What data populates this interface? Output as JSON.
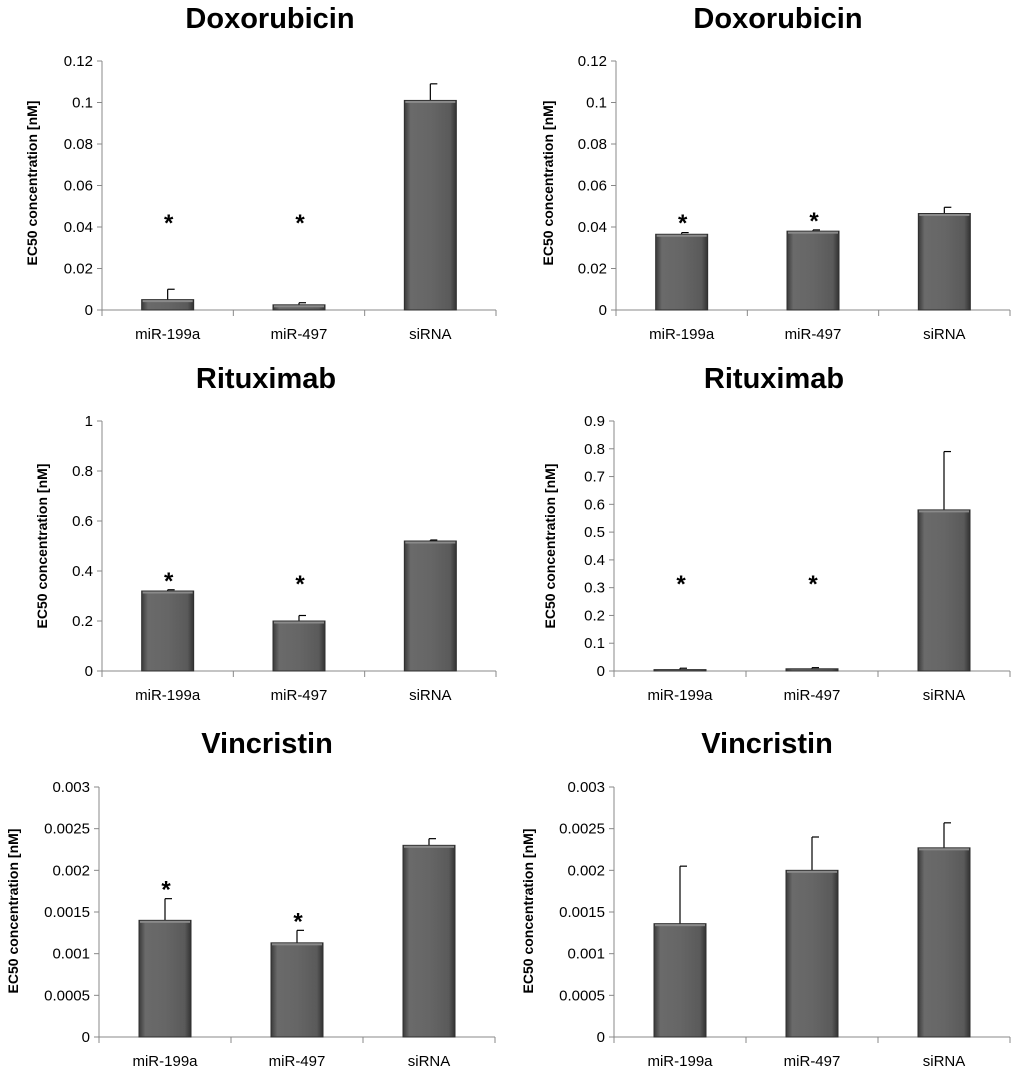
{
  "chart_data": [
    {
      "type": "bar",
      "title": "Doxorubicin",
      "ylabel": "EC50 concentration [nM]",
      "categories": [
        "miR-199a",
        "miR-497",
        "siRNA"
      ],
      "values": [
        0.005,
        0.0025,
        0.101
      ],
      "errors": [
        0.005,
        0.001,
        0.008
      ],
      "significant": [
        true,
        true,
        false
      ],
      "ylim": [
        0,
        0.12
      ],
      "yticks": [
        "0",
        "0.02",
        "0.04",
        "0.06",
        "0.08",
        "0.1",
        "0.12"
      ],
      "annotation": "*",
      "grid": false,
      "color": "#616161"
    },
    {
      "type": "bar",
      "title": "Doxorubicin",
      "ylabel": "EC50 concentration [nM]",
      "categories": [
        "miR-199a",
        "miR-497",
        "siRNA"
      ],
      "values": [
        0.0365,
        0.038,
        0.0465
      ],
      "errors": [
        0.0008,
        0.0006,
        0.003
      ],
      "significant": [
        true,
        true,
        false
      ],
      "ylim": [
        0,
        0.12
      ],
      "yticks": [
        "0",
        "0.02",
        "0.04",
        "0.06",
        "0.08",
        "0.1",
        "0.12"
      ],
      "annotation": "*",
      "grid": false,
      "color": "#616161"
    },
    {
      "type": "bar",
      "title": "Rituximab",
      "ylabel": "EC50 concentration [nM]",
      "categories": [
        "miR-199a",
        "miR-497",
        "siRNA"
      ],
      "values": [
        0.32,
        0.2,
        0.52
      ],
      "errors": [
        0.005,
        0.022,
        0.004
      ],
      "significant": [
        true,
        true,
        false
      ],
      "ylim": [
        0,
        1
      ],
      "yticks": [
        "0",
        "0.2",
        "0.4",
        "0.6",
        "0.8",
        "1"
      ],
      "annotation": "*",
      "grid": false,
      "color": "#616161"
    },
    {
      "type": "bar",
      "title": "Rituximab",
      "ylabel": "EC50 concentration [nM]",
      "categories": [
        "miR-199a",
        "miR-497",
        "siRNA"
      ],
      "values": [
        0.005,
        0.008,
        0.58
      ],
      "errors": [
        0.005,
        0.004,
        0.21
      ],
      "significant": [
        true,
        true,
        false
      ],
      "ylim": [
        0,
        0.9
      ],
      "yticks": [
        "0",
        "0.1",
        "0.2",
        "0.3",
        "0.4",
        "0.5",
        "0.6",
        "0.7",
        "0.8",
        "0.9"
      ],
      "annotation": "*",
      "grid": false,
      "color": "#616161"
    },
    {
      "type": "bar",
      "title": "Vincristin",
      "ylabel": "EC50 concentration [nM]",
      "categories": [
        "miR-199a",
        "miR-497",
        "siRNA"
      ],
      "values": [
        0.0014,
        0.00113,
        0.0023
      ],
      "errors": [
        0.00026,
        0.00015,
        8e-05
      ],
      "significant": [
        true,
        true,
        false
      ],
      "ylim": [
        0,
        0.003
      ],
      "yticks": [
        "0",
        "0.0005",
        "0.001",
        "0.0015",
        "0.002",
        "0.0025",
        "0.003"
      ],
      "annotation": "*",
      "grid": false,
      "color": "#616161"
    },
    {
      "type": "bar",
      "title": "Vincristin",
      "ylabel": "EC50 concentration [nM]",
      "categories": [
        "miR-199a",
        "miR-497",
        "siRNA"
      ],
      "values": [
        0.00136,
        0.002,
        0.00227
      ],
      "errors": [
        0.00069,
        0.0004,
        0.0003
      ],
      "significant": [
        false,
        false,
        false
      ],
      "ylim": [
        0,
        0.003
      ],
      "yticks": [
        "0",
        "0.0005",
        "0.001",
        "0.0015",
        "0.002",
        "0.0025",
        "0.003"
      ],
      "annotation": "*",
      "grid": false,
      "color": "#616161"
    }
  ]
}
